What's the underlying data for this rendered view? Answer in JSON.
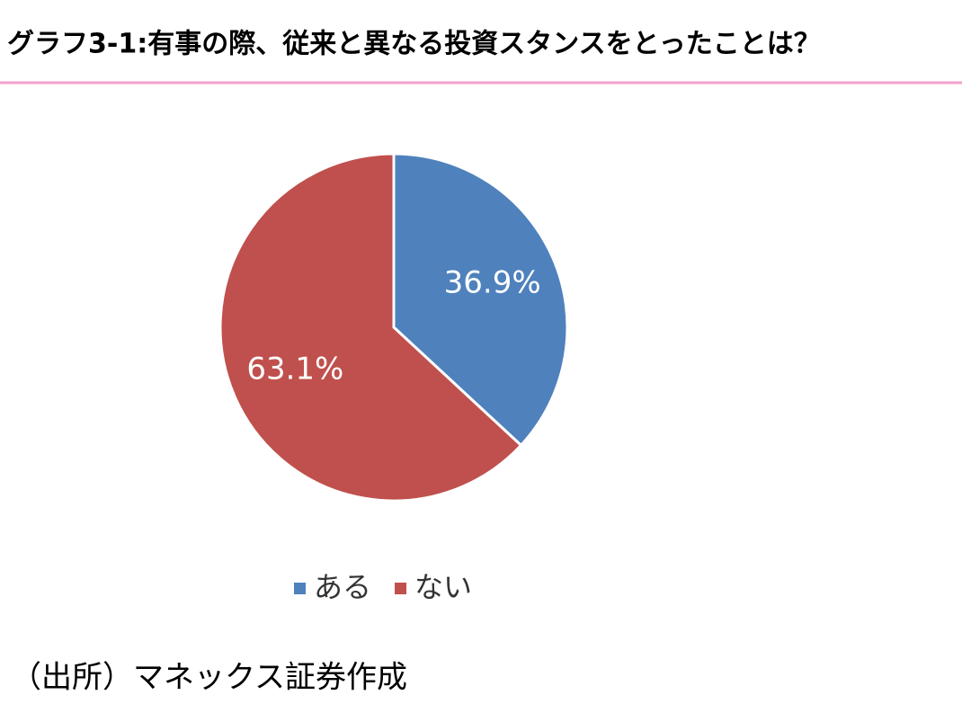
{
  "chart_data": {
    "type": "pie",
    "title": "グラフ3-1:有事の際、従来と異なる投資スタンスをとったことは？",
    "categories": [
      "ある",
      "ない"
    ],
    "values": [
      36.9,
      63.1
    ],
    "value_labels": [
      "36.9%",
      "63.1%"
    ],
    "colors": [
      "#4f81bd",
      "#c0504d"
    ],
    "source": "（出所）マネックス証券作成"
  }
}
